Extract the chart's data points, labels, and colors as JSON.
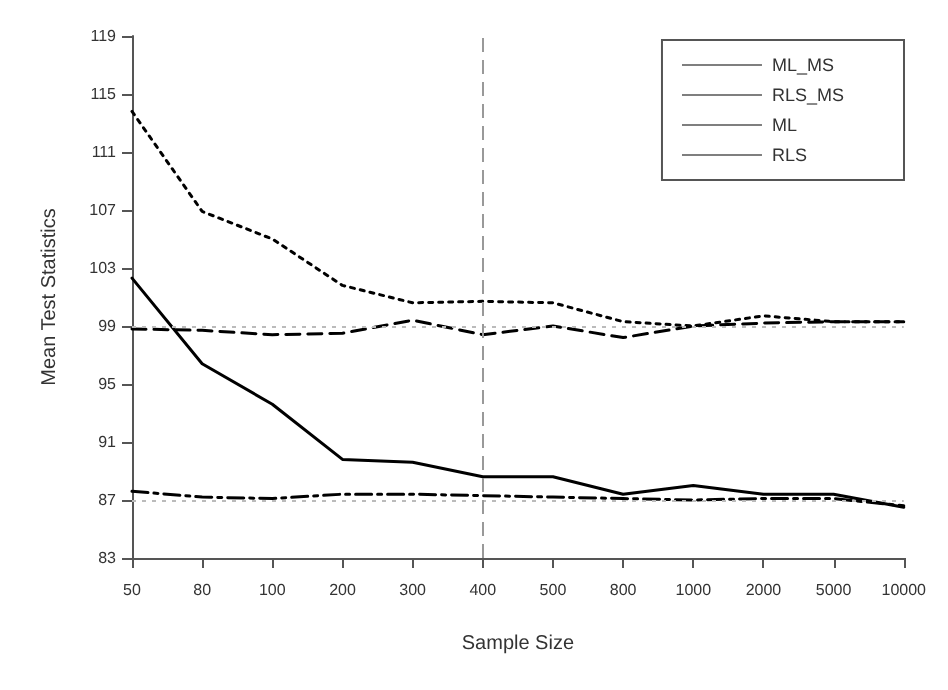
{
  "chart_data": {
    "type": "line",
    "xlabel": "Sample Size",
    "ylabel": "Mean Test Statistics",
    "categories": [
      "50",
      "80",
      "100",
      "200",
      "300",
      "400",
      "500",
      "800",
      "1000",
      "2000",
      "5000",
      "10000"
    ],
    "series": [
      {
        "name": "ML_MS",
        "color": "#000000",
        "line_style": "dotted",
        "values": [
          113.8,
          106.9,
          105.0,
          101.8,
          100.6,
          100.7,
          100.6,
          99.3,
          99.0,
          99.7,
          99.3,
          99.3
        ]
      },
      {
        "name": "RLS_MS",
        "color": "#000000",
        "line_style": "dashed",
        "values": [
          98.8,
          98.7,
          98.4,
          98.5,
          99.4,
          98.4,
          99.0,
          98.2,
          99.0,
          99.2,
          99.3,
          99.3
        ]
      },
      {
        "name": "ML",
        "color": "#000000",
        "line_style": "solid",
        "values": [
          102.3,
          96.4,
          93.6,
          89.8,
          89.6,
          88.6,
          88.6,
          87.4,
          88.0,
          87.4,
          87.4,
          86.5
        ]
      },
      {
        "name": "RLS",
        "color": "#000000",
        "line_style": "dashdot",
        "values": [
          87.6,
          87.2,
          87.1,
          87.4,
          87.4,
          87.3,
          87.2,
          87.1,
          87.0,
          87.1,
          87.1,
          86.6
        ]
      }
    ],
    "ylim": [
      83,
      119
    ],
    "yticks": [
      83,
      87,
      91,
      95,
      99,
      103,
      107,
      111,
      115,
      119
    ],
    "ref_lines": [
      {
        "axis": "y",
        "value": 99,
        "color": "#bbbbbb",
        "line_style": "dotted"
      },
      {
        "axis": "y",
        "value": 87,
        "color": "#bbbbbb",
        "line_style": "dotted"
      },
      {
        "axis": "x",
        "value": "400",
        "color": "#999999",
        "line_style": "dashed"
      }
    ],
    "grid": false,
    "legend": "top right",
    "marker": "none"
  }
}
